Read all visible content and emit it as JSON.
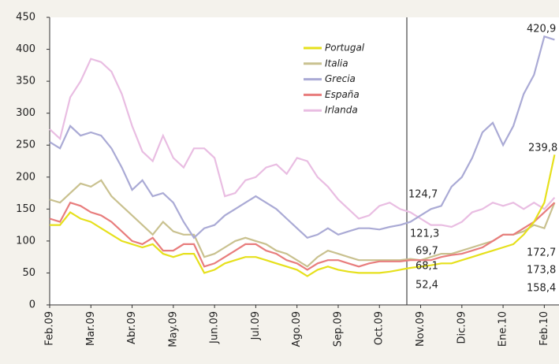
{
  "chart_data": {
    "type": "line",
    "categories": [
      "Feb.09",
      null,
      null,
      null,
      "Mar.09",
      null,
      null,
      null,
      "Abr.09",
      null,
      null,
      null,
      "May.09",
      null,
      null,
      null,
      "Jun.09",
      null,
      null,
      null,
      "Jul.09",
      null,
      null,
      null,
      "Ago.09",
      null,
      null,
      null,
      "Sep.09",
      null,
      null,
      null,
      "Oct.09",
      null,
      null,
      null,
      "Nov.09",
      null,
      null,
      null,
      "Dic.09",
      null,
      null,
      null,
      "Ene.10",
      null,
      null,
      null,
      "Feb.10",
      null
    ],
    "series": [
      {
        "name": "Portugal",
        "color": "#e6e01c",
        "values": [
          125,
          125,
          145,
          135,
          130,
          120,
          110,
          100,
          95,
          90,
          95,
          80,
          75,
          80,
          80,
          50,
          55,
          65,
          70,
          75,
          75,
          70,
          65,
          60,
          55,
          45,
          55,
          60,
          55,
          52,
          50,
          50,
          50,
          52,
          55,
          58,
          60,
          62,
          65,
          65,
          70,
          75,
          80,
          85,
          90,
          95,
          110,
          130,
          160,
          235
        ]
      },
      {
        "name": "Italia",
        "color": "#c9c18f",
        "values": [
          165,
          160,
          175,
          190,
          185,
          195,
          170,
          155,
          140,
          125,
          110,
          130,
          115,
          110,
          110,
          75,
          80,
          90,
          100,
          105,
          100,
          95,
          85,
          80,
          70,
          60,
          75,
          85,
          80,
          75,
          70,
          70,
          70,
          70,
          70,
          72,
          70,
          75,
          80,
          80,
          85,
          90,
          95,
          100,
          110,
          110,
          115,
          125,
          120,
          160
        ]
      },
      {
        "name": "Grecia",
        "color": "#aaaad5",
        "values": [
          255,
          245,
          280,
          265,
          270,
          265,
          245,
          215,
          180,
          195,
          170,
          175,
          160,
          130,
          105,
          120,
          125,
          140,
          150,
          160,
          170,
          160,
          150,
          135,
          120,
          105,
          110,
          120,
          110,
          115,
          120,
          120,
          118,
          122,
          125,
          130,
          140,
          150,
          155,
          185,
          200,
          230,
          270,
          285,
          250,
          280,
          330,
          360,
          420,
          415
        ]
      },
      {
        "name": "España",
        "color": "#e87d7d",
        "values": [
          135,
          130,
          160,
          155,
          145,
          140,
          130,
          115,
          100,
          95,
          105,
          85,
          85,
          95,
          95,
          60,
          65,
          75,
          85,
          95,
          95,
          85,
          80,
          70,
          65,
          55,
          65,
          70,
          70,
          65,
          60,
          65,
          68,
          68,
          68,
          70,
          70,
          70,
          75,
          78,
          80,
          85,
          90,
          100,
          110,
          110,
          120,
          130,
          145,
          160
        ]
      },
      {
        "name": "Irlanda",
        "color": "#e9bde2",
        "values": [
          275,
          260,
          325,
          350,
          385,
          380,
          365,
          330,
          280,
          240,
          225,
          265,
          230,
          215,
          245,
          245,
          230,
          170,
          175,
          195,
          200,
          215,
          220,
          205,
          230,
          225,
          200,
          185,
          165,
          150,
          135,
          140,
          155,
          160,
          150,
          145,
          135,
          125,
          125,
          122,
          130,
          145,
          150,
          160,
          155,
          160,
          150,
          160,
          150,
          168
        ]
      }
    ],
    "ylim": [
      0,
      450
    ],
    "yticks": [
      0,
      50,
      100,
      150,
      200,
      250,
      300,
      350,
      400,
      450
    ],
    "annotations": [
      "420,9",
      "239,8",
      "124,7",
      "121,3",
      "69,7",
      "68,1",
      "52,4",
      "172,7",
      "173,8",
      "158,4"
    ],
    "grid": false,
    "legend": "top-center"
  }
}
